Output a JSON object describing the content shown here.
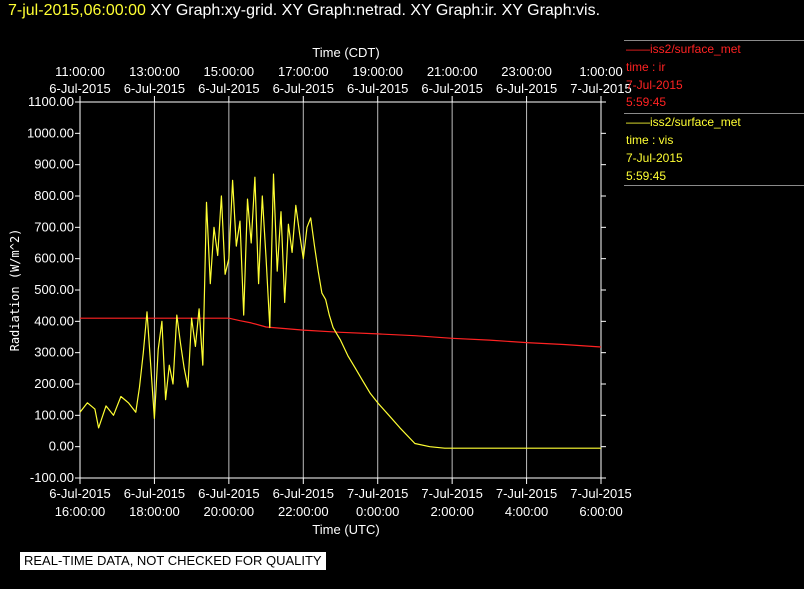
{
  "header": {
    "timestamp": "7-jul-2015,06:00:00",
    "graphs": "XY Graph:xy-grid.  XY Graph:netrad.  XY Graph:ir.  XY Graph:vis."
  },
  "legend": [
    {
      "source": "iss2/surface_met",
      "var": "time : ir",
      "date": "7-Jul-2015",
      "time": "5:59:45",
      "color": "#ff2222"
    },
    {
      "source": "iss2/surface_met",
      "var": "time : vis",
      "date": "7-Jul-2015",
      "time": "5:59:45",
      "color": "#ffff33"
    }
  ],
  "footer": "REAL-TIME DATA, NOT CHECKED FOR QUALITY",
  "chart_data": {
    "type": "line",
    "ylabel": "Radiation (W/m^2)",
    "xlabel_bottom": "Time (UTC)",
    "xlabel_top": "Time (CDT)",
    "ylim": [
      -100,
      1100
    ],
    "yticks": [
      "1100.00",
      "1000.00",
      "900.00",
      "800.00",
      "700.00",
      "600.00",
      "500.00",
      "400.00",
      "300.00",
      "200.00",
      "100.00",
      "0.00",
      "-100.00"
    ],
    "x_utc_hours": [
      16,
      18,
      20,
      22,
      24,
      26,
      28,
      30
    ],
    "xticks_bottom": [
      [
        "6-Jul-2015",
        "16:00:00"
      ],
      [
        "6-Jul-2015",
        "18:00:00"
      ],
      [
        "6-Jul-2015",
        "20:00:00"
      ],
      [
        "6-Jul-2015",
        "22:00:00"
      ],
      [
        "7-Jul-2015",
        "0:00:00"
      ],
      [
        "7-Jul-2015",
        "2:00:00"
      ],
      [
        "7-Jul-2015",
        "4:00:00"
      ],
      [
        "7-Jul-2015",
        "6:00:00"
      ]
    ],
    "xticks_top": [
      [
        "11:00:00",
        "6-Jul-2015"
      ],
      [
        "13:00:00",
        "6-Jul-2015"
      ],
      [
        "15:00:00",
        "6-Jul-2015"
      ],
      [
        "17:00:00",
        "6-Jul-2015"
      ],
      [
        "19:00:00",
        "6-Jul-2015"
      ],
      [
        "21:00:00",
        "6-Jul-2015"
      ],
      [
        "23:00:00",
        "6-Jul-2015"
      ],
      [
        "1:00:00",
        "7-Jul-2015"
      ]
    ],
    "grid": true,
    "series": [
      {
        "name": "time : ir",
        "color": "#ff2222",
        "x": [
          16,
          17,
          18,
          19,
          20,
          20.3,
          20.6,
          21,
          22,
          23,
          24,
          25,
          26,
          27,
          28,
          29,
          30
        ],
        "y": [
          410,
          410,
          410,
          410,
          410,
          402,
          395,
          382,
          372,
          365,
          360,
          354,
          346,
          340,
          332,
          326,
          318
        ]
      },
      {
        "name": "time : vis",
        "color": "#ffff33",
        "x": [
          16,
          16.2,
          16.4,
          16.5,
          16.7,
          16.9,
          17.1,
          17.3,
          17.5,
          17.6,
          17.7,
          17.8,
          17.9,
          18.0,
          18.1,
          18.2,
          18.3,
          18.4,
          18.5,
          18.6,
          18.7,
          18.8,
          18.9,
          19.0,
          19.1,
          19.2,
          19.3,
          19.4,
          19.5,
          19.6,
          19.7,
          19.8,
          19.9,
          20.0,
          20.1,
          20.2,
          20.3,
          20.4,
          20.5,
          20.6,
          20.7,
          20.8,
          20.9,
          21.0,
          21.1,
          21.2,
          21.3,
          21.4,
          21.5,
          21.6,
          21.7,
          21.8,
          21.9,
          22.0,
          22.1,
          22.2,
          22.3,
          22.4,
          22.5,
          22.6,
          22.7,
          22.8,
          22.9,
          23.0,
          23.2,
          23.4,
          23.6,
          23.8,
          24.0,
          24.3,
          24.6,
          25.0,
          25.4,
          25.8,
          26.0,
          26.5,
          27,
          28,
          29,
          30
        ],
        "y": [
          110,
          140,
          120,
          60,
          130,
          100,
          160,
          140,
          110,
          190,
          300,
          430,
          260,
          90,
          310,
          400,
          150,
          260,
          200,
          420,
          330,
          250,
          190,
          410,
          320,
          440,
          260,
          780,
          520,
          700,
          610,
          800,
          550,
          600,
          850,
          640,
          720,
          420,
          790,
          650,
          860,
          520,
          800,
          600,
          380,
          870,
          560,
          750,
          460,
          710,
          620,
          770,
          680,
          600,
          700,
          730,
          640,
          560,
          490,
          470,
          420,
          380,
          360,
          340,
          290,
          250,
          210,
          170,
          140,
          100,
          60,
          10,
          0,
          -5,
          -5,
          -5,
          -5,
          -5,
          -5,
          -5
        ]
      }
    ]
  }
}
